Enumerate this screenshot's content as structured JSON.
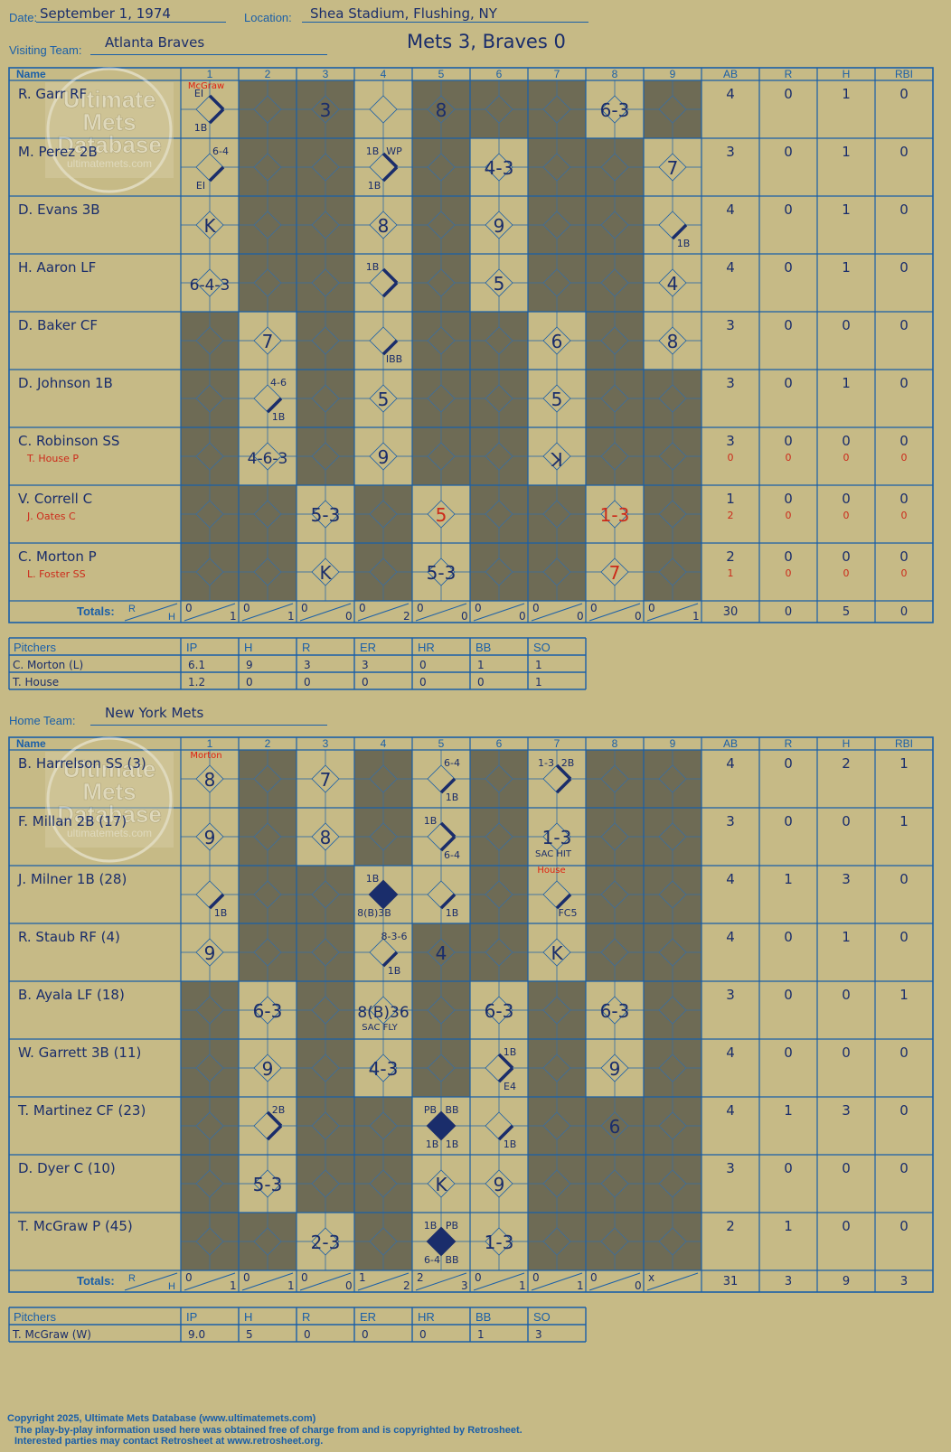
{
  "header": {
    "date_label": "Date:",
    "date": "September 1, 1974",
    "location_label": "Location:",
    "location": "Shea Stadium, Flushing, NY",
    "visiting_label": "Visiting Team:",
    "visiting_team": "Atlanta Braves",
    "home_label": "Home Team:",
    "home_team": "New York Mets",
    "result": "Mets 3, Braves 0"
  },
  "grid_labels": {
    "name": "Name",
    "innings": [
      "1",
      "2",
      "3",
      "4",
      "5",
      "6",
      "7",
      "8",
      "9"
    ],
    "stats": [
      "AB",
      "R",
      "H",
      "RBI"
    ],
    "totals": "Totals:",
    "r": "R",
    "h": "H"
  },
  "pitcher_labels": [
    "Pitchers",
    "IP",
    "H",
    "R",
    "ER",
    "HR",
    "BB",
    "SO"
  ],
  "visitors": {
    "batters": [
      {
        "name": "R. Garr RF",
        "sub": "",
        "stats": [
          "4",
          "0",
          "1",
          "0"
        ],
        "sub_stats": null,
        "cells": {
          "1": [
            {
              "t": "EI",
              "p": "tl"
            },
            {
              "t": "1B",
              "p": "bl"
            }
          ],
          "3": [
            {
              "t": "3",
              "p": "c"
            }
          ],
          "5": [
            {
              "t": "8",
              "p": "c"
            }
          ],
          "8": [
            {
              "t": "6-3",
              "p": "c"
            }
          ]
        },
        "paths": {
          "1": "12"
        }
      },
      {
        "name": "M. Perez 2B",
        "sub": "",
        "stats": [
          "3",
          "0",
          "1",
          "0"
        ],
        "sub_stats": null,
        "cells": {
          "1": [
            {
              "t": "6-4",
              "p": "tr"
            },
            {
              "t": "EI",
              "p": "bl"
            }
          ],
          "4": [
            {
              "t": "1B",
              "p": "tl"
            },
            {
              "t": "WP",
              "p": "tr"
            },
            {
              "t": "1B",
              "p": "bl"
            }
          ],
          "6": [
            {
              "t": "4-3",
              "p": "c"
            }
          ],
          "9": [
            {
              "t": "7",
              "p": "c"
            }
          ]
        },
        "paths": {
          "1": "1",
          "4": "12"
        }
      },
      {
        "name": "D. Evans 3B",
        "sub": "",
        "stats": [
          "4",
          "0",
          "1",
          "0"
        ],
        "sub_stats": null,
        "cells": {
          "1": [
            {
              "t": "K",
              "p": "c"
            }
          ],
          "4": [
            {
              "t": "8",
              "p": "c"
            }
          ],
          "6": [
            {
              "t": "9",
              "p": "c"
            }
          ],
          "9": [
            {
              "t": "1B",
              "p": "br"
            }
          ]
        },
        "paths": {
          "9": "1"
        }
      },
      {
        "name": "H. Aaron LF",
        "sub": "",
        "stats": [
          "4",
          "0",
          "1",
          "0"
        ],
        "sub_stats": null,
        "cells": {
          "1": [
            {
              "t": "6-4-3",
              "p": "c"
            }
          ],
          "4": [
            {
              "t": "1B",
              "p": "tl"
            }
          ],
          "6": [
            {
              "t": "5",
              "p": "c"
            }
          ],
          "9": [
            {
              "t": "4",
              "p": "c"
            }
          ]
        },
        "paths": {
          "4": "12"
        }
      },
      {
        "name": "D. Baker CF",
        "sub": "",
        "stats": [
          "3",
          "0",
          "0",
          "0"
        ],
        "sub_stats": null,
        "cells": {
          "2": [
            {
              "t": "7",
              "p": "c"
            }
          ],
          "4": [
            {
              "t": "IBB",
              "p": "br"
            }
          ],
          "7": [
            {
              "t": "6",
              "p": "c"
            }
          ],
          "9": [
            {
              "t": "8",
              "p": "c"
            }
          ]
        },
        "paths": {
          "4": "1"
        }
      },
      {
        "name": "D. Johnson 1B",
        "sub": "",
        "stats": [
          "3",
          "0",
          "1",
          "0"
        ],
        "sub_stats": null,
        "cells": {
          "2": [
            {
              "t": "4-6",
              "p": "tr"
            },
            {
              "t": "1B",
              "p": "br"
            }
          ],
          "4": [
            {
              "t": "5",
              "p": "c"
            }
          ],
          "7": [
            {
              "t": "5",
              "p": "c"
            }
          ]
        },
        "paths": {
          "2": "1"
        }
      },
      {
        "name": "C. Robinson SS",
        "sub": "T. House P",
        "stats": [
          "3",
          "0",
          "0",
          "0"
        ],
        "sub_stats": [
          "0",
          "0",
          "0",
          "0"
        ],
        "cells": {
          "2": [
            {
              "t": "4-6-3",
              "p": "c"
            }
          ],
          "4": [
            {
              "t": "9",
              "p": "c"
            }
          ],
          "7": [
            {
              "t": "K",
              "p": "c",
              "flip": true
            }
          ]
        },
        "paths": {}
      },
      {
        "name": "V. Correll C",
        "sub": "J. Oates C",
        "stats": [
          "1",
          "0",
          "0",
          "0"
        ],
        "sub_stats": [
          "2",
          "0",
          "0",
          "0"
        ],
        "cells": {
          "3": [
            {
              "t": "5-3",
              "p": "c"
            }
          ],
          "5": [
            {
              "t": "5",
              "p": "c",
              "red": true
            }
          ],
          "8": [
            {
              "t": "1-3",
              "p": "c",
              "red": true
            }
          ]
        },
        "paths": {}
      },
      {
        "name": "C. Morton P",
        "sub": "L. Foster SS",
        "stats": [
          "2",
          "0",
          "0",
          "0"
        ],
        "sub_stats": [
          "1",
          "0",
          "0",
          "0"
        ],
        "cells": {
          "3": [
            {
              "t": "K",
              "p": "c"
            }
          ],
          "5": [
            {
              "t": "5-3",
              "p": "c"
            }
          ],
          "8": [
            {
              "t": "7",
              "p": "c",
              "red": true
            }
          ]
        },
        "paths": {}
      }
    ],
    "pitcher_change": {
      "inning": "1",
      "text": "McGraw"
    },
    "inning_totals": [
      [
        "0",
        "1"
      ],
      [
        "0",
        "1"
      ],
      [
        "0",
        "0"
      ],
      [
        "0",
        "2"
      ],
      [
        "0",
        "0"
      ],
      [
        "0",
        "0"
      ],
      [
        "0",
        "0"
      ],
      [
        "0",
        "0"
      ],
      [
        "0",
        "1"
      ]
    ],
    "totals": [
      "30",
      "0",
      "5",
      "0"
    ],
    "pitchers": [
      [
        "C. Morton (L)",
        "6.1",
        "9",
        "3",
        "3",
        "0",
        "1",
        "1"
      ],
      [
        "T. House",
        "1.2",
        "0",
        "0",
        "0",
        "0",
        "0",
        "1"
      ]
    ]
  },
  "home": {
    "batters": [
      {
        "name": "B. Harrelson SS (3)",
        "sub": "",
        "stats": [
          "4",
          "0",
          "2",
          "1"
        ],
        "sub_stats": null,
        "cells": {
          "1": [
            {
              "t": "8",
              "p": "c"
            }
          ],
          "3": [
            {
              "t": "7",
              "p": "c"
            }
          ],
          "5": [
            {
              "t": "6-4",
              "p": "tr"
            },
            {
              "t": "1B",
              "p": "br"
            }
          ],
          "7": [
            {
              "t": "1-3",
              "p": "tl"
            },
            {
              "t": "2B",
              "p": "tr"
            }
          ]
        },
        "paths": {
          "5": "1",
          "7": "12"
        }
      },
      {
        "name": "F. Millan 2B (17)",
        "sub": "",
        "stats": [
          "3",
          "0",
          "0",
          "1"
        ],
        "sub_stats": null,
        "cells": {
          "1": [
            {
              "t": "9",
              "p": "c"
            }
          ],
          "3": [
            {
              "t": "8",
              "p": "c"
            }
          ],
          "5": [
            {
              "t": "1B",
              "p": "tl"
            },
            {
              "t": "6-4",
              "p": "br"
            }
          ],
          "7": [
            {
              "t": "1-3",
              "p": "c"
            },
            {
              "t": "SAC HIT",
              "p": "bt"
            }
          ]
        },
        "paths": {
          "5": "12"
        }
      },
      {
        "name": "J. Milner 1B (28)",
        "sub": "",
        "stats": [
          "4",
          "1",
          "3",
          "0"
        ],
        "sub_stats": null,
        "cells": {
          "1": [
            {
              "t": "1B",
              "p": "br"
            }
          ],
          "4": [
            {
              "t": "1B",
              "p": "tl"
            },
            {
              "t": "8(B)3B",
              "p": "bl"
            }
          ],
          "5": [
            {
              "t": "1B",
              "p": "br"
            }
          ],
          "7": [
            {
              "t": "FC5",
              "p": "br"
            }
          ]
        },
        "paths": {
          "1": "1",
          "5": "1",
          "7": "1"
        },
        "runs": [
          "4"
        ]
      },
      {
        "name": "R. Staub RF (4)",
        "sub": "",
        "stats": [
          "4",
          "0",
          "1",
          "0"
        ],
        "sub_stats": null,
        "cells": {
          "1": [
            {
              "t": "9",
              "p": "c"
            }
          ],
          "4": [
            {
              "t": "8-3-6",
              "p": "tr"
            },
            {
              "t": "1B",
              "p": "br"
            }
          ],
          "5": [
            {
              "t": "4",
              "p": "c"
            }
          ],
          "7": [
            {
              "t": "K",
              "p": "c"
            }
          ]
        },
        "paths": {
          "4": "1"
        }
      },
      {
        "name": "B. Ayala LF (18)",
        "sub": "",
        "stats": [
          "3",
          "0",
          "0",
          "1"
        ],
        "sub_stats": null,
        "cells": {
          "2": [
            {
              "t": "6-3",
              "p": "c"
            }
          ],
          "4": [
            {
              "t": "8(B)36",
              "p": "c"
            },
            {
              "t": "SAC FLY",
              "p": "bt"
            }
          ],
          "6": [
            {
              "t": "6-3",
              "p": "c"
            }
          ],
          "8": [
            {
              "t": "6-3",
              "p": "c"
            }
          ]
        },
        "paths": {}
      },
      {
        "name": "W. Garrett 3B (11)",
        "sub": "",
        "stats": [
          "4",
          "0",
          "0",
          "0"
        ],
        "sub_stats": null,
        "cells": {
          "2": [
            {
              "t": "9",
              "p": "c"
            }
          ],
          "4": [
            {
              "t": "4-3",
              "p": "c"
            }
          ],
          "6": [
            {
              "t": "1B",
              "p": "tr"
            },
            {
              "t": "E4",
              "p": "br"
            }
          ],
          "8": [
            {
              "t": "9",
              "p": "c"
            }
          ]
        },
        "paths": {
          "6": "12"
        }
      },
      {
        "name": "T. Martinez CF (23)",
        "sub": "",
        "stats": [
          "4",
          "1",
          "3",
          "0"
        ],
        "sub_stats": null,
        "cells": {
          "2": [
            {
              "t": "2B",
              "p": "tr"
            }
          ],
          "5": [
            {
              "t": "PB",
              "p": "tl"
            },
            {
              "t": "BB",
              "p": "tr"
            },
            {
              "t": "1B",
              "p": "bl"
            },
            {
              "t": "1B",
              "p": "br"
            }
          ],
          "6": [
            {
              "t": "1B",
              "p": "br"
            }
          ],
          "8": [
            {
              "t": "6",
              "p": "c"
            }
          ]
        },
        "paths": {
          "2": "12",
          "6": "1"
        },
        "runs": [
          "5"
        ]
      },
      {
        "name": "D. Dyer C (10)",
        "sub": "",
        "stats": [
          "3",
          "0",
          "0",
          "0"
        ],
        "sub_stats": null,
        "cells": {
          "2": [
            {
              "t": "5-3",
              "p": "c"
            }
          ],
          "5": [
            {
              "t": "K",
              "p": "c"
            }
          ],
          "6": [
            {
              "t": "9",
              "p": "c"
            }
          ]
        },
        "paths": {}
      },
      {
        "name": "T. McGraw P (45)",
        "sub": "",
        "stats": [
          "2",
          "1",
          "0",
          "0"
        ],
        "sub_stats": null,
        "cells": {
          "3": [
            {
              "t": "2-3",
              "p": "c"
            }
          ],
          "5": [
            {
              "t": "1B",
              "p": "tl"
            },
            {
              "t": "PB",
              "p": "tr"
            },
            {
              "t": "6-4",
              "p": "bl"
            },
            {
              "t": "BB",
              "p": "br"
            }
          ],
          "6": [
            {
              "t": "1-3",
              "p": "c"
            }
          ]
        },
        "paths": {},
        "runs": [
          "5"
        ]
      }
    ],
    "pitcher_change": {
      "inning": "1",
      "text": "Morton"
    },
    "pitcher_change2": {
      "inning": "7",
      "text": "House"
    },
    "inning_totals": [
      [
        "0",
        "1"
      ],
      [
        "0",
        "1"
      ],
      [
        "0",
        "0"
      ],
      [
        "1",
        "2"
      ],
      [
        "2",
        "3"
      ],
      [
        "0",
        "1"
      ],
      [
        "0",
        "1"
      ],
      [
        "0",
        "0"
      ],
      [
        "x",
        ""
      ]
    ],
    "totals": [
      "31",
      "3",
      "9",
      "3"
    ],
    "pitchers": [
      [
        "T. McGraw (W)",
        "9.0",
        "5",
        "0",
        "0",
        "0",
        "1",
        "3"
      ]
    ]
  },
  "watermark": {
    "line1": "Ultimate",
    "line2": "Mets",
    "line3": "Database",
    "url": "ultimatemets.com"
  },
  "footer": {
    "line1": "Copyright 2025, Ultimate Mets Database (www.ultimatemets.com)",
    "line2": "The play-by-play information used here was obtained free of charge from and is copyrighted by Retrosheet.",
    "line3": "Interested parties may contact Retrosheet at www.retrosheet.org."
  },
  "colors": {
    "bg": "#c6ba86",
    "line": "#1a5fa8",
    "ink": "#1a2d6b",
    "shade": "#6e6b55",
    "red": "#cc2a1a"
  }
}
